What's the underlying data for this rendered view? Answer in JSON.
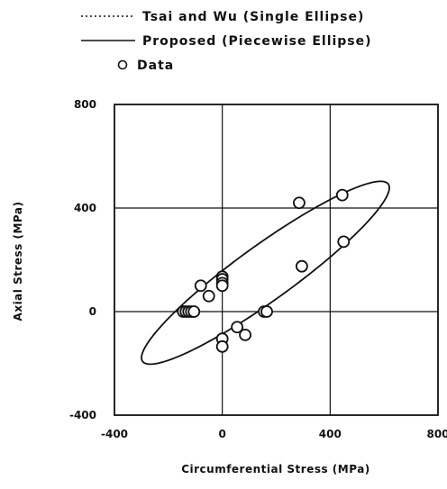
{
  "chart_data": {
    "type": "scatter",
    "xlabel": "Circumferential Stress (MPa)",
    "ylabel": "Axial Stress (MPa)",
    "xlim": [
      -400,
      800
    ],
    "ylim": [
      -400,
      800
    ],
    "x_ticks": [
      "-400",
      "0",
      "400",
      "800"
    ],
    "y_ticks": [
      "-400",
      "0",
      "400",
      "800"
    ],
    "grid": true,
    "legend_position": "top",
    "legend": [
      {
        "label": "Tsai and Wu (Single Ellipse)",
        "style": "dotted"
      },
      {
        "label": "Proposed (Piecewise Ellipse)",
        "style": "solid"
      },
      {
        "label": "Data",
        "style": "circle"
      }
    ],
    "series": [
      {
        "name": "Data",
        "marker": "open-circle",
        "points": [
          [
            -145,
            0
          ],
          [
            -135,
            0
          ],
          [
            -125,
            0
          ],
          [
            -115,
            0
          ],
          [
            -105,
            0
          ],
          [
            -80,
            100
          ],
          [
            -50,
            60
          ],
          [
            0,
            135
          ],
          [
            0,
            125
          ],
          [
            0,
            110
          ],
          [
            0,
            100
          ],
          [
            0,
            -105
          ],
          [
            0,
            -135
          ],
          [
            55,
            -60
          ],
          [
            85,
            -90
          ],
          [
            155,
            0
          ],
          [
            165,
            0
          ],
          [
            285,
            420
          ],
          [
            295,
            175
          ],
          [
            445,
            450
          ],
          [
            450,
            270
          ]
        ]
      },
      {
        "name": "Proposed (Piecewise Ellipse)",
        "line": "solid",
        "ellipse": {
          "cx": 160,
          "cy": 150,
          "semi_major": 570,
          "semi_minor": 105,
          "rotation_deg": 37
        }
      }
    ]
  }
}
